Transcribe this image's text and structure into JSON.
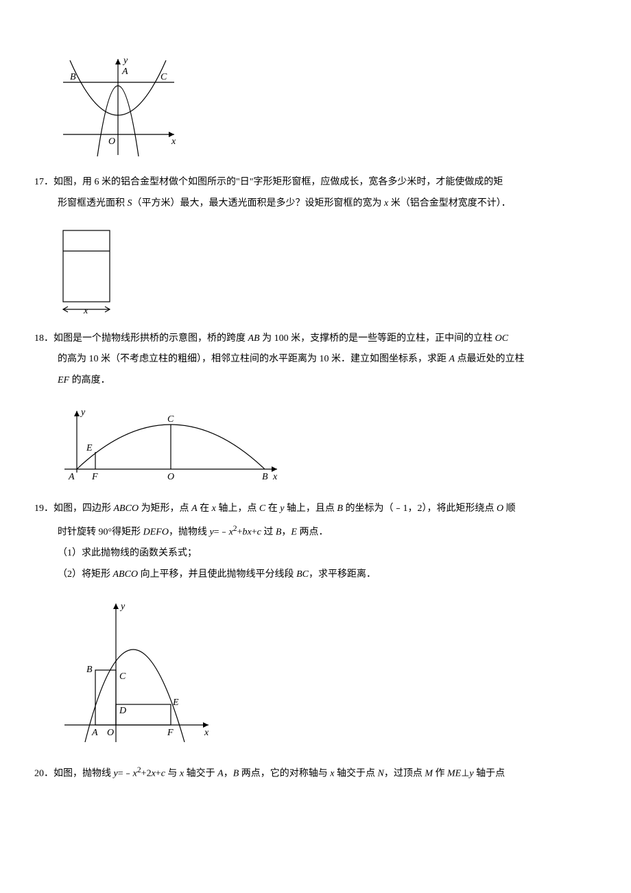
{
  "figure16": {
    "axis_labels": {
      "x": "x",
      "y": "y"
    },
    "point_labels": {
      "A": "A",
      "B": "B",
      "C": "C",
      "O": "O"
    },
    "colors": {
      "stroke": "#000000",
      "bg": "#ffffff",
      "watermark": "#e9edf2"
    }
  },
  "problem17": {
    "number": "17．",
    "line1": "如图，用 6 米的铝合金型材做个如图所示的\"日\"字形矩形窗框，应做成长，宽各多少米时，才能使做成的矩",
    "line2": "形窗框透光面积 S（平方米）最大，最大透光面积是多少？设矩形窗框的宽为 x 米（铝合金型材宽度不计）．",
    "x_label": "x",
    "colors": {
      "stroke": "#000000",
      "bg": "#ffffff",
      "watermark": "#e9edf2"
    }
  },
  "problem18": {
    "number": "18．",
    "line1": "如图是一个抛物线形拱桥的示意图，桥的跨度 AB 为 100 米，支撑桥的是一些等距的立柱，正中间的立柱 OC",
    "line2": "的高为 10 米（不考虑立柱的粗细），相邻立柱间的水平距离为 10 米．建立如图坐标系，求距 A 点最近处的立柱",
    "line3": "EF 的高度．",
    "axis_labels": {
      "x": "x",
      "y": "y"
    },
    "point_labels": {
      "A": "A",
      "B": "B",
      "C": "C",
      "E": "E",
      "F": "F",
      "O": "O"
    },
    "colors": {
      "stroke": "#000000",
      "bg": "#ffffff"
    }
  },
  "problem19": {
    "number": "19．",
    "line1_pre_eq": "如图，四边形 ABCO 为矩形，点 A 在 x 轴上，点 C 在 y 轴上，且点 B 的坐标为（﹣1，2），将此矩形绕点 O 顺",
    "line2_part1": "时针旋转 90°得矩形 DEFO，抛物线 y=﹣x",
    "line2_sup": "2",
    "line2_part2": "+bx+c 过 B，E 两点．",
    "sub1": "（1）求此抛物线的函数关系式；",
    "sub2": "（2）将矩形 ABCO 向上平移，并且使此抛物线平分线段 BC，求平移距离．",
    "axis_labels": {
      "x": "x",
      "y": "y"
    },
    "point_labels": {
      "A": "A",
      "B": "B",
      "C": "C",
      "D": "D",
      "E": "E",
      "F": "F",
      "O": "O"
    },
    "colors": {
      "stroke": "#000000",
      "bg": "#ffffff",
      "watermark": "#e9edf2"
    }
  },
  "problem20": {
    "number": "20．",
    "line1_part1": "如图，抛物线 y=﹣x",
    "line1_sup": "2",
    "line1_part2": "+2x+c 与 x 轴交于 A，B 两点，它的对称轴与 x 轴交于点 N，过顶点 M 作 ME⊥y 轴于点"
  }
}
